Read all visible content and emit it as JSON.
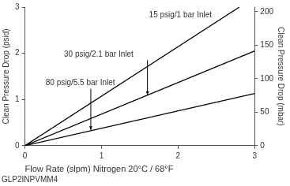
{
  "chart_data": {
    "type": "line",
    "x_label": "Flow Rate (slpm) Nitrogen 20°C / 68°F",
    "subtitle": "GLP2INPVMM4",
    "y_label": "Clean Pressure Drop (psid)",
    "y2_label": "Clean Pressure Drop (mbar)",
    "series": [
      {
        "name": "15 psig/1 bar Inlet",
        "color": "#000000",
        "x": [
          0,
          2.8
        ],
        "values": [
          0,
          3
        ]
      },
      {
        "name": "30 psig/2.1 bar Inlet",
        "color": "#000000",
        "x": [
          0,
          3
        ],
        "values": [
          0,
          2.05
        ]
      },
      {
        "name": "80 psig/5.5 bar Inlet",
        "color": "#000000",
        "x": [
          0,
          3
        ],
        "values": [
          0,
          1.13
        ]
      }
    ],
    "annotations": [
      {
        "text": "15 psig/1 bar Inlet",
        "x": 1.62,
        "y": 2.83
      },
      {
        "text": "30 psig/2.1 bar Inlet",
        "x": 0.51,
        "y": 1.97,
        "arrow": [
          1.6,
          1.1
        ]
      },
      {
        "text": "80 psig/5.5 bar Inlet",
        "x": 0.27,
        "y": 1.35,
        "arrow": [
          0.86,
          0.34
        ]
      }
    ],
    "xlim": [
      0,
      3
    ],
    "xticks": [
      0,
      1,
      2,
      3
    ],
    "ylim": [
      0,
      3
    ],
    "yticks": [
      0,
      1,
      2,
      3
    ],
    "y2lim": [
      0,
      206.8
    ],
    "y2ticks": [
      0,
      50,
      100,
      150,
      200
    ],
    "grid": false
  }
}
